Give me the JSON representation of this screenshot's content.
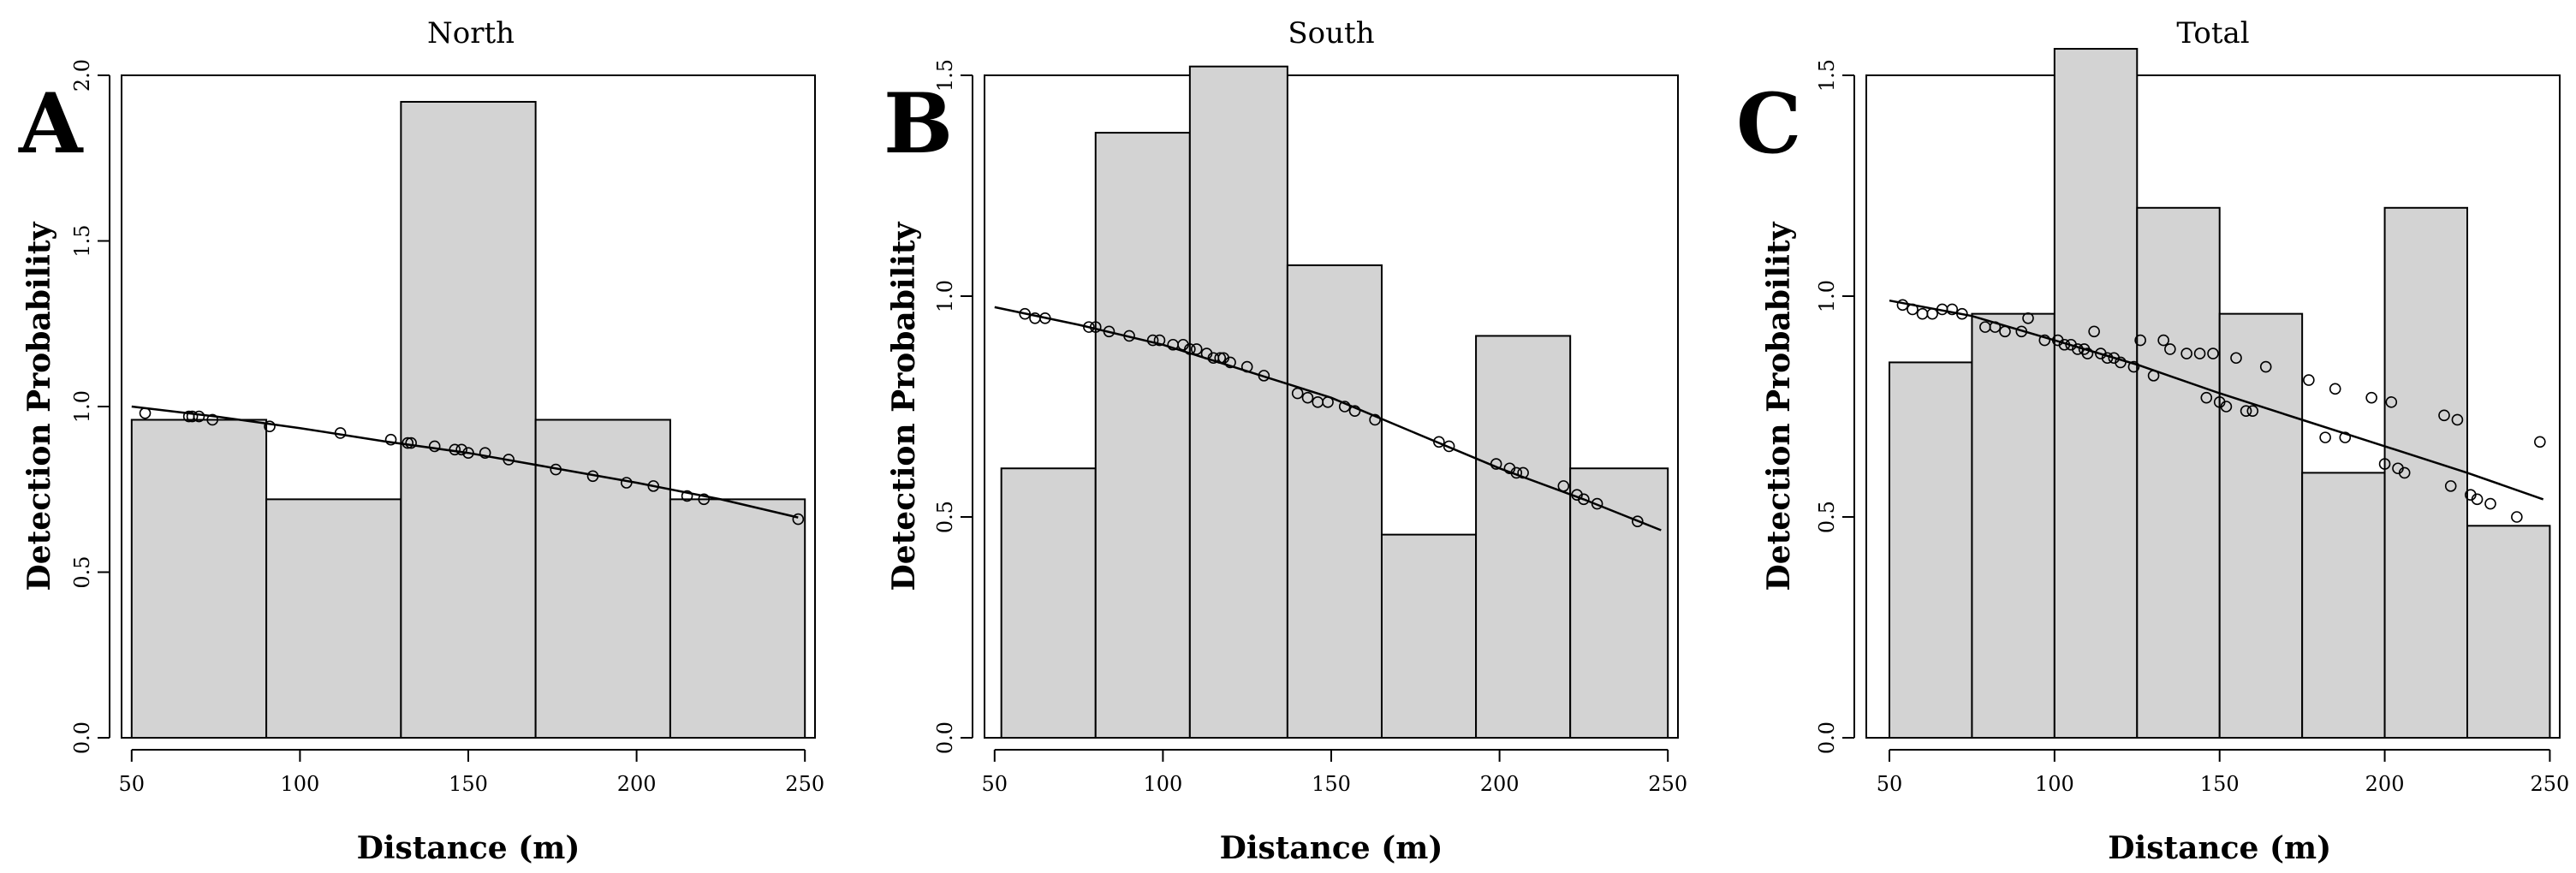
{
  "chart_data": [
    {
      "type": "bar",
      "panel": "A",
      "title": "North",
      "xlabel": "Distance (m)",
      "ylabel": "Detection Probability",
      "xlim": [
        47,
        253
      ],
      "ylim": [
        0,
        2.0
      ],
      "xticks": [
        50,
        100,
        150,
        200,
        250
      ],
      "yticks": [
        0.0,
        0.5,
        1.0,
        1.5,
        2.0
      ],
      "ytick_labels": [
        "0.0",
        "0.5",
        "1.0",
        "1.5",
        "2.0"
      ],
      "bins": [
        {
          "x0": 50,
          "x1": 90,
          "value": 0.96
        },
        {
          "x0": 90,
          "x1": 130,
          "value": 0.72
        },
        {
          "x0": 130,
          "x1": 170,
          "value": 1.92
        },
        {
          "x0": 170,
          "x1": 210,
          "value": 0.96
        },
        {
          "x0": 210,
          "x1": 250,
          "value": 0.72
        }
      ],
      "fit_curve": {
        "x": [
          50,
          75,
          100,
          125,
          150,
          175,
          200,
          225,
          248
        ],
        "y": [
          1.0,
          0.97,
          0.935,
          0.895,
          0.86,
          0.815,
          0.77,
          0.72,
          0.665
        ]
      },
      "points": {
        "x": [
          54,
          67,
          68,
          70,
          74,
          91,
          112,
          127,
          132,
          133,
          140,
          146,
          148,
          150,
          155,
          162,
          176,
          187,
          197,
          205,
          215,
          220,
          248
        ],
        "y": [
          0.98,
          0.97,
          0.97,
          0.97,
          0.96,
          0.94,
          0.92,
          0.9,
          0.89,
          0.89,
          0.88,
          0.87,
          0.87,
          0.86,
          0.86,
          0.84,
          0.81,
          0.79,
          0.77,
          0.76,
          0.73,
          0.72,
          0.66
        ]
      }
    },
    {
      "type": "bar",
      "panel": "B",
      "title": "South",
      "xlabel": "Distance (m)",
      "ylabel": "Detection Probability",
      "xlim": [
        47,
        253
      ],
      "ylim": [
        0,
        1.5
      ],
      "xticks": [
        50,
        100,
        150,
        200,
        250
      ],
      "yticks": [
        0.0,
        0.5,
        1.0,
        1.5
      ],
      "ytick_labels": [
        "0.0",
        "0.5",
        "1.0",
        "1.5"
      ],
      "bins": [
        {
          "x0": 52,
          "x1": 80,
          "value": 0.61
        },
        {
          "x0": 80,
          "x1": 108,
          "value": 1.37
        },
        {
          "x0": 108,
          "x1": 137,
          "value": 1.52
        },
        {
          "x0": 137,
          "x1": 165,
          "value": 1.07
        },
        {
          "x0": 165,
          "x1": 193,
          "value": 0.46
        },
        {
          "x0": 193,
          "x1": 221,
          "value": 0.91
        },
        {
          "x0": 221,
          "x1": 250,
          "value": 0.61
        }
      ],
      "fit_curve": {
        "x": [
          50,
          75,
          100,
          125,
          150,
          175,
          200,
          225,
          248
        ],
        "y": [
          0.975,
          0.935,
          0.89,
          0.83,
          0.77,
          0.69,
          0.61,
          0.54,
          0.47
        ]
      },
      "points": {
        "x": [
          59,
          62,
          65,
          78,
          80,
          84,
          90,
          97,
          99,
          103,
          106,
          108,
          110,
          113,
          115,
          117,
          118,
          120,
          125,
          130,
          140,
          143,
          146,
          149,
          154,
          157,
          163,
          182,
          185,
          199,
          203,
          205,
          207,
          219,
          223,
          225,
          229,
          241
        ],
        "y": [
          0.96,
          0.95,
          0.95,
          0.93,
          0.93,
          0.92,
          0.91,
          0.9,
          0.9,
          0.89,
          0.89,
          0.88,
          0.88,
          0.87,
          0.86,
          0.86,
          0.86,
          0.85,
          0.84,
          0.82,
          0.78,
          0.77,
          0.76,
          0.76,
          0.75,
          0.74,
          0.72,
          0.67,
          0.66,
          0.62,
          0.61,
          0.6,
          0.6,
          0.57,
          0.55,
          0.54,
          0.53,
          0.49
        ]
      }
    },
    {
      "type": "bar",
      "panel": "C",
      "title": "Total",
      "xlabel": "Distance (m)",
      "ylabel": "Detection Probability",
      "xlim": [
        43,
        253
      ],
      "ylim": [
        0,
        1.5
      ],
      "xticks": [
        50,
        100,
        150,
        200,
        250
      ],
      "yticks": [
        0.0,
        0.5,
        1.0,
        1.5
      ],
      "ytick_labels": [
        "0.0",
        "0.5",
        "1.0",
        "1.5"
      ],
      "bins": [
        {
          "x0": 50,
          "x1": 75,
          "value": 0.85
        },
        {
          "x0": 75,
          "x1": 100,
          "value": 0.96
        },
        {
          "x0": 100,
          "x1": 125,
          "value": 1.56
        },
        {
          "x0": 125,
          "x1": 150,
          "value": 1.2
        },
        {
          "x0": 150,
          "x1": 175,
          "value": 0.96
        },
        {
          "x0": 175,
          "x1": 200,
          "value": 0.6
        },
        {
          "x0": 200,
          "x1": 225,
          "value": 1.2
        },
        {
          "x0": 225,
          "x1": 250,
          "value": 0.48
        }
      ],
      "fit_curve": {
        "x": [
          50,
          75,
          100,
          125,
          150,
          175,
          200,
          225,
          248
        ],
        "y": [
          0.99,
          0.955,
          0.9,
          0.845,
          0.78,
          0.72,
          0.66,
          0.6,
          0.54
        ]
      },
      "points": {
        "x": [
          54,
          57,
          60,
          63,
          66,
          69,
          72,
          79,
          82,
          85,
          90,
          92,
          97,
          101,
          103,
          105,
          107,
          109,
          110,
          112,
          114,
          116,
          118,
          120,
          124,
          126,
          130,
          133,
          135,
          140,
          144,
          146,
          148,
          150,
          152,
          155,
          158,
          160,
          164,
          177,
          182,
          185,
          188,
          196,
          200,
          202,
          204,
          206,
          218,
          220,
          222,
          226,
          228,
          232,
          240,
          247
        ],
        "y": [
          0.98,
          0.97,
          0.96,
          0.96,
          0.97,
          0.97,
          0.96,
          0.93,
          0.93,
          0.92,
          0.92,
          0.95,
          0.9,
          0.9,
          0.89,
          0.89,
          0.88,
          0.88,
          0.87,
          0.92,
          0.87,
          0.86,
          0.86,
          0.85,
          0.84,
          0.9,
          0.82,
          0.9,
          0.88,
          0.87,
          0.87,
          0.77,
          0.87,
          0.76,
          0.75,
          0.86,
          0.74,
          0.74,
          0.84,
          0.81,
          0.68,
          0.79,
          0.68,
          0.77,
          0.62,
          0.76,
          0.61,
          0.6,
          0.73,
          0.57,
          0.72,
          0.55,
          0.54,
          0.53,
          0.5,
          0.67
        ]
      }
    }
  ]
}
